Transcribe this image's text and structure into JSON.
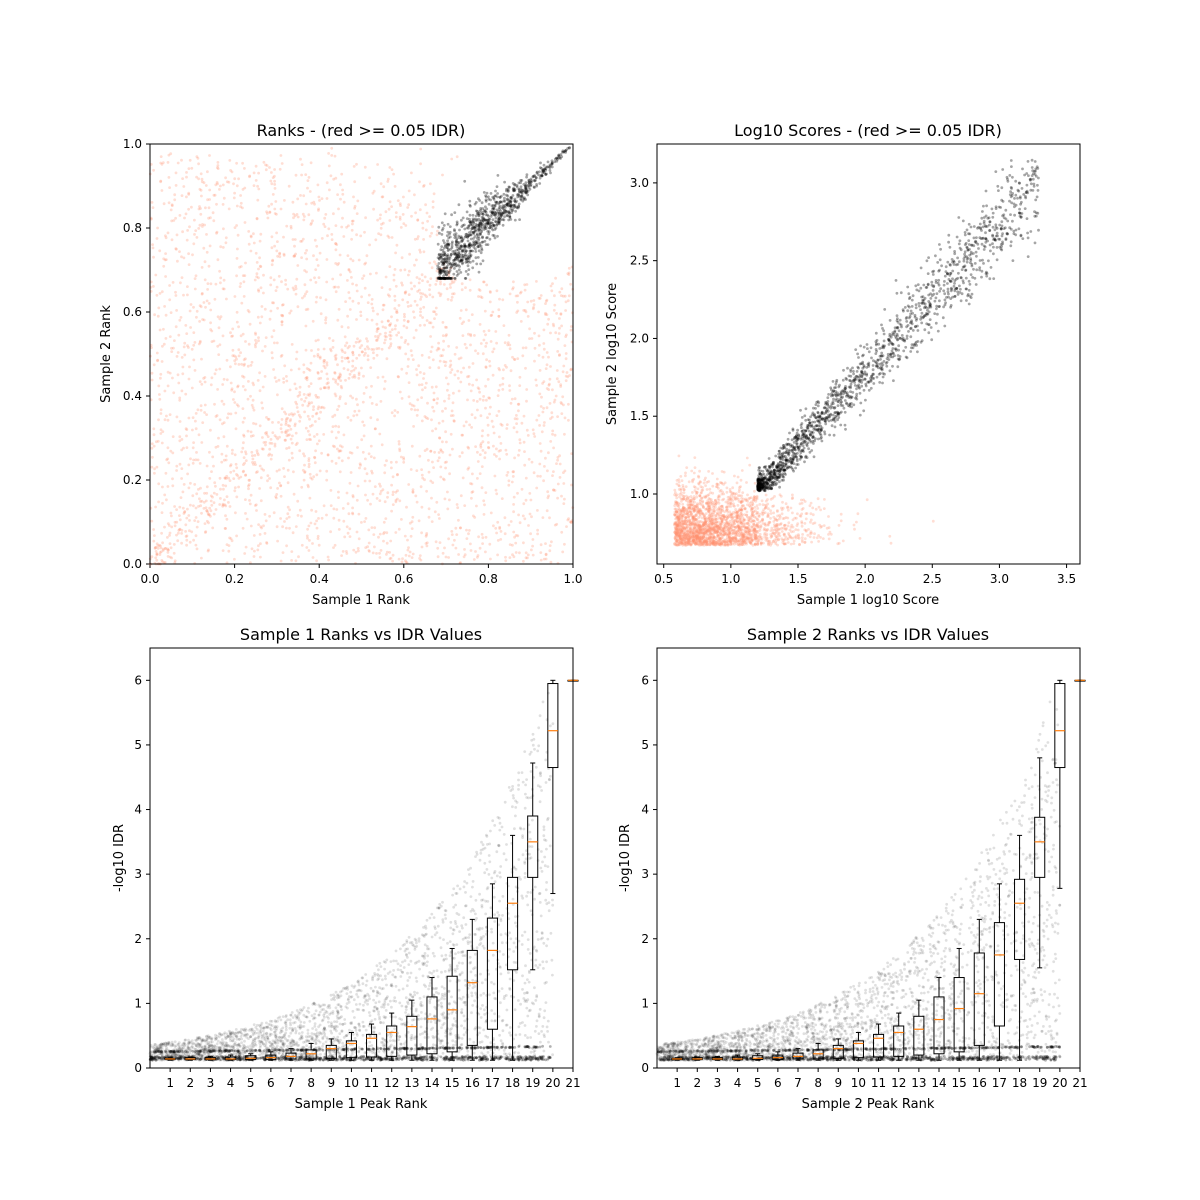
{
  "chart_data": [
    {
      "type": "scatter",
      "title": "Ranks - (red >= 0.05 IDR)",
      "xlabel": "Sample 1 Rank",
      "ylabel": "Sample 2 Rank",
      "xlim": [
        0.0,
        1.0
      ],
      "ylim": [
        0.0,
        1.0
      ],
      "xticks": [
        "0.0",
        "0.2",
        "0.4",
        "0.6",
        "0.8",
        "1.0"
      ],
      "yticks": [
        "0.0",
        "0.2",
        "0.4",
        "0.6",
        "0.8",
        "1.0"
      ],
      "series": [
        {
          "color": "#ff9270",
          "summary": {
            "x_range": [
              0.0,
              1.0
            ],
            "y_range": [
              0.0,
              1.0
            ]
          }
        },
        {
          "color": "#000000",
          "summary": {
            "x_range": [
              0.68,
              1.0
            ],
            "y_range": [
              0.68,
              1.0
            ]
          }
        }
      ],
      "grid": false
    },
    {
      "type": "scatter",
      "title": "Log10 Scores - (red >= 0.05 IDR)",
      "xlabel": "Sample 1 log10 Score",
      "ylabel": "Sample 2 log10 Score",
      "xlim": [
        0.45,
        3.6
      ],
      "ylim": [
        0.55,
        3.25
      ],
      "xticks": [
        "0.5",
        "1.0",
        "1.5",
        "2.0",
        "2.5",
        "3.0",
        "3.5"
      ],
      "yticks": [
        "1.0",
        "1.5",
        "2.0",
        "2.5",
        "3.0"
      ],
      "series": [
        {
          "color": "#ff9270",
          "summary": {
            "x_range": [
              0.58,
              2.9
            ],
            "y_range": [
              0.67,
              1.5
            ]
          }
        },
        {
          "color": "#000000",
          "summary": {
            "x_range": [
              1.15,
              3.42
            ],
            "y_range": [
              1.0,
              3.12
            ]
          }
        }
      ],
      "grid": false
    },
    {
      "type": "box",
      "title": "Sample 1 Ranks vs IDR Values",
      "xlabel": "Sample 1 Peak Rank",
      "ylabel": "-log10 IDR",
      "xlim": [
        0,
        21
      ],
      "ylim": [
        0,
        6.5
      ],
      "xticks": [
        "1",
        "2",
        "3",
        "4",
        "5",
        "6",
        "7",
        "8",
        "9",
        "10",
        "11",
        "12",
        "13",
        "14",
        "15",
        "16",
        "17",
        "18",
        "19",
        "20",
        "21"
      ],
      "yticks": [
        "0",
        "1",
        "2",
        "3",
        "4",
        "5",
        "6"
      ],
      "boxes": [
        {
          "x": 1,
          "q1": 0.13,
          "median": 0.14,
          "q3": 0.15,
          "wlo": 0.12,
          "whi": 0.16
        },
        {
          "x": 2,
          "q1": 0.13,
          "median": 0.14,
          "q3": 0.16,
          "wlo": 0.12,
          "whi": 0.17
        },
        {
          "x": 3,
          "q1": 0.13,
          "median": 0.14,
          "q3": 0.16,
          "wlo": 0.12,
          "whi": 0.18
        },
        {
          "x": 4,
          "q1": 0.13,
          "median": 0.14,
          "q3": 0.17,
          "wlo": 0.12,
          "whi": 0.2
        },
        {
          "x": 5,
          "q1": 0.13,
          "median": 0.15,
          "q3": 0.19,
          "wlo": 0.12,
          "whi": 0.22
        },
        {
          "x": 6,
          "q1": 0.13,
          "median": 0.16,
          "q3": 0.2,
          "wlo": 0.12,
          "whi": 0.25
        },
        {
          "x": 7,
          "q1": 0.14,
          "median": 0.18,
          "q3": 0.23,
          "wlo": 0.12,
          "whi": 0.3
        },
        {
          "x": 8,
          "q1": 0.14,
          "median": 0.22,
          "q3": 0.28,
          "wlo": 0.12,
          "whi": 0.38
        },
        {
          "x": 9,
          "q1": 0.15,
          "median": 0.3,
          "q3": 0.35,
          "wlo": 0.12,
          "whi": 0.45
        },
        {
          "x": 10,
          "q1": 0.16,
          "median": 0.38,
          "q3": 0.42,
          "wlo": 0.12,
          "whi": 0.55
        },
        {
          "x": 11,
          "q1": 0.17,
          "median": 0.46,
          "q3": 0.52,
          "wlo": 0.12,
          "whi": 0.68
        },
        {
          "x": 12,
          "q1": 0.18,
          "median": 0.55,
          "q3": 0.65,
          "wlo": 0.12,
          "whi": 0.85
        },
        {
          "x": 13,
          "q1": 0.2,
          "median": 0.64,
          "q3": 0.8,
          "wlo": 0.12,
          "whi": 1.05
        },
        {
          "x": 14,
          "q1": 0.22,
          "median": 0.76,
          "q3": 1.1,
          "wlo": 0.12,
          "whi": 1.4
        },
        {
          "x": 15,
          "q1": 0.25,
          "median": 0.9,
          "q3": 1.42,
          "wlo": 0.12,
          "whi": 1.85
        },
        {
          "x": 16,
          "q1": 0.35,
          "median": 1.32,
          "q3": 1.82,
          "wlo": 0.12,
          "whi": 2.3
        },
        {
          "x": 17,
          "q1": 0.6,
          "median": 1.82,
          "q3": 2.32,
          "wlo": 0.12,
          "whi": 2.85
        },
        {
          "x": 18,
          "q1": 1.52,
          "median": 2.55,
          "q3": 2.95,
          "wlo": 0.12,
          "whi": 3.6
        },
        {
          "x": 19,
          "q1": 2.95,
          "median": 3.5,
          "q3": 3.9,
          "wlo": 1.52,
          "whi": 4.72
        },
        {
          "x": 20,
          "q1": 4.65,
          "median": 5.22,
          "q3": 5.95,
          "wlo": 2.7,
          "whi": 6.0
        },
        {
          "x": 21,
          "q1": 6.0,
          "median": 6.0,
          "q3": 6.0,
          "wlo": 6.0,
          "whi": 6.0
        }
      ],
      "scatter_color": "#000000",
      "median_color": "#ff7f0e",
      "grid": false
    },
    {
      "type": "box",
      "title": "Sample 2 Ranks vs IDR Values",
      "xlabel": "Sample 2 Peak Rank",
      "ylabel": "-log10 IDR",
      "xlim": [
        0,
        21
      ],
      "ylim": [
        0,
        6.5
      ],
      "xticks": [
        "1",
        "2",
        "3",
        "4",
        "5",
        "6",
        "7",
        "8",
        "9",
        "10",
        "11",
        "12",
        "13",
        "14",
        "15",
        "16",
        "17",
        "18",
        "19",
        "20",
        "21"
      ],
      "yticks": [
        "0",
        "1",
        "2",
        "3",
        "4",
        "5",
        "6"
      ],
      "boxes": [
        {
          "x": 1,
          "q1": 0.13,
          "median": 0.14,
          "q3": 0.15,
          "wlo": 0.12,
          "whi": 0.16
        },
        {
          "x": 2,
          "q1": 0.13,
          "median": 0.14,
          "q3": 0.16,
          "wlo": 0.12,
          "whi": 0.17
        },
        {
          "x": 3,
          "q1": 0.13,
          "median": 0.14,
          "q3": 0.16,
          "wlo": 0.12,
          "whi": 0.18
        },
        {
          "x": 4,
          "q1": 0.13,
          "median": 0.14,
          "q3": 0.17,
          "wlo": 0.12,
          "whi": 0.2
        },
        {
          "x": 5,
          "q1": 0.13,
          "median": 0.15,
          "q3": 0.19,
          "wlo": 0.12,
          "whi": 0.22
        },
        {
          "x": 6,
          "q1": 0.13,
          "median": 0.16,
          "q3": 0.2,
          "wlo": 0.12,
          "whi": 0.25
        },
        {
          "x": 7,
          "q1": 0.14,
          "median": 0.18,
          "q3": 0.23,
          "wlo": 0.12,
          "whi": 0.3
        },
        {
          "x": 8,
          "q1": 0.14,
          "median": 0.22,
          "q3": 0.28,
          "wlo": 0.12,
          "whi": 0.38
        },
        {
          "x": 9,
          "q1": 0.15,
          "median": 0.3,
          "q3": 0.35,
          "wlo": 0.12,
          "whi": 0.45
        },
        {
          "x": 10,
          "q1": 0.16,
          "median": 0.38,
          "q3": 0.42,
          "wlo": 0.12,
          "whi": 0.55
        },
        {
          "x": 11,
          "q1": 0.17,
          "median": 0.46,
          "q3": 0.52,
          "wlo": 0.12,
          "whi": 0.68
        },
        {
          "x": 12,
          "q1": 0.18,
          "median": 0.55,
          "q3": 0.65,
          "wlo": 0.12,
          "whi": 0.85
        },
        {
          "x": 13,
          "q1": 0.2,
          "median": 0.6,
          "q3": 0.8,
          "wlo": 0.12,
          "whi": 1.05
        },
        {
          "x": 14,
          "q1": 0.22,
          "median": 0.75,
          "q3": 1.1,
          "wlo": 0.12,
          "whi": 1.4
        },
        {
          "x": 15,
          "q1": 0.25,
          "median": 0.92,
          "q3": 1.4,
          "wlo": 0.12,
          "whi": 1.85
        },
        {
          "x": 16,
          "q1": 0.35,
          "median": 1.15,
          "q3": 1.78,
          "wlo": 0.12,
          "whi": 2.3
        },
        {
          "x": 17,
          "q1": 0.65,
          "median": 1.75,
          "q3": 2.25,
          "wlo": 0.12,
          "whi": 2.85
        },
        {
          "x": 18,
          "q1": 1.68,
          "median": 2.55,
          "q3": 2.92,
          "wlo": 0.12,
          "whi": 3.6
        },
        {
          "x": 19,
          "q1": 2.95,
          "median": 3.5,
          "q3": 3.88,
          "wlo": 1.55,
          "whi": 4.8
        },
        {
          "x": 20,
          "q1": 4.65,
          "median": 5.22,
          "q3": 5.95,
          "wlo": 2.78,
          "whi": 6.0
        },
        {
          "x": 21,
          "q1": 6.0,
          "median": 6.0,
          "q3": 6.0,
          "wlo": 6.0,
          "whi": 6.0
        }
      ],
      "scatter_color": "#000000",
      "median_color": "#ff7f0e",
      "grid": false
    }
  ]
}
